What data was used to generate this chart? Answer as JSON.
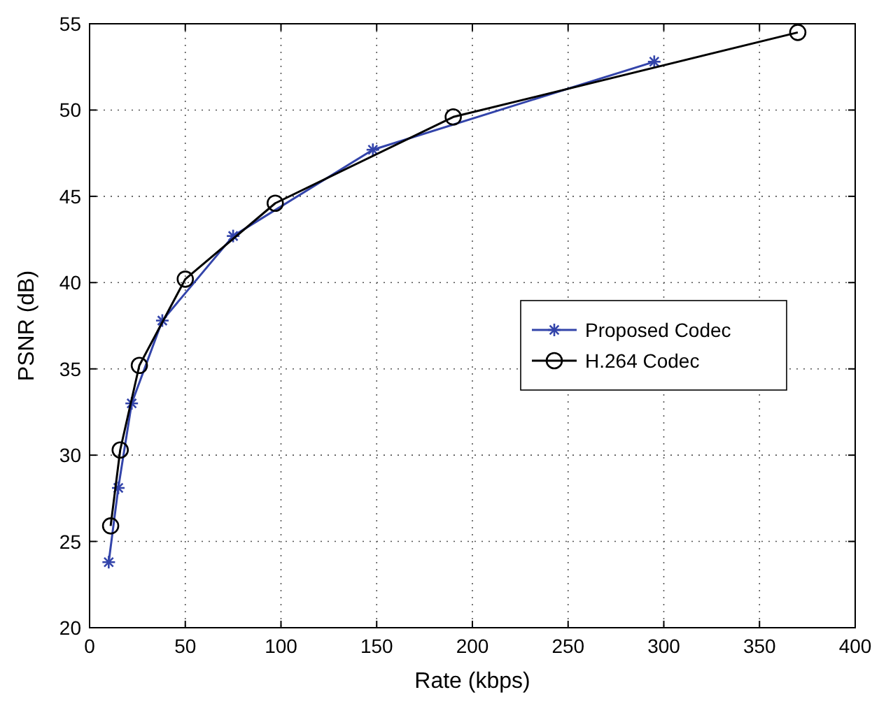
{
  "chart_data": {
    "type": "line",
    "xlabel": "Rate (kbps)",
    "ylabel": "PSNR (dB)",
    "xlim": [
      0,
      400
    ],
    "xticks": [
      0,
      50,
      100,
      150,
      200,
      250,
      300,
      350,
      400
    ],
    "ylim": [
      20,
      55
    ],
    "yticks": [
      20,
      25,
      30,
      35,
      40,
      45,
      50,
      55
    ],
    "grid": true,
    "legend": "right",
    "line_style": "solid",
    "series": [
      {
        "name": "Proposed Codec",
        "color": "#3344aa",
        "marker": "cross",
        "x": [
          10,
          15,
          22,
          38,
          75,
          148,
          295
        ],
        "values": [
          23.8,
          28.1,
          33,
          37.8,
          42.7,
          47.7,
          52.8
        ]
      },
      {
        "name": "H.264 Codec",
        "color": "#000000",
        "marker": "circle",
        "x": [
          11,
          16,
          26,
          50,
          97,
          190,
          370
        ],
        "values": [
          25.9,
          30.3,
          35.2,
          40.2,
          44.6,
          49.6,
          54.5
        ]
      }
    ]
  }
}
